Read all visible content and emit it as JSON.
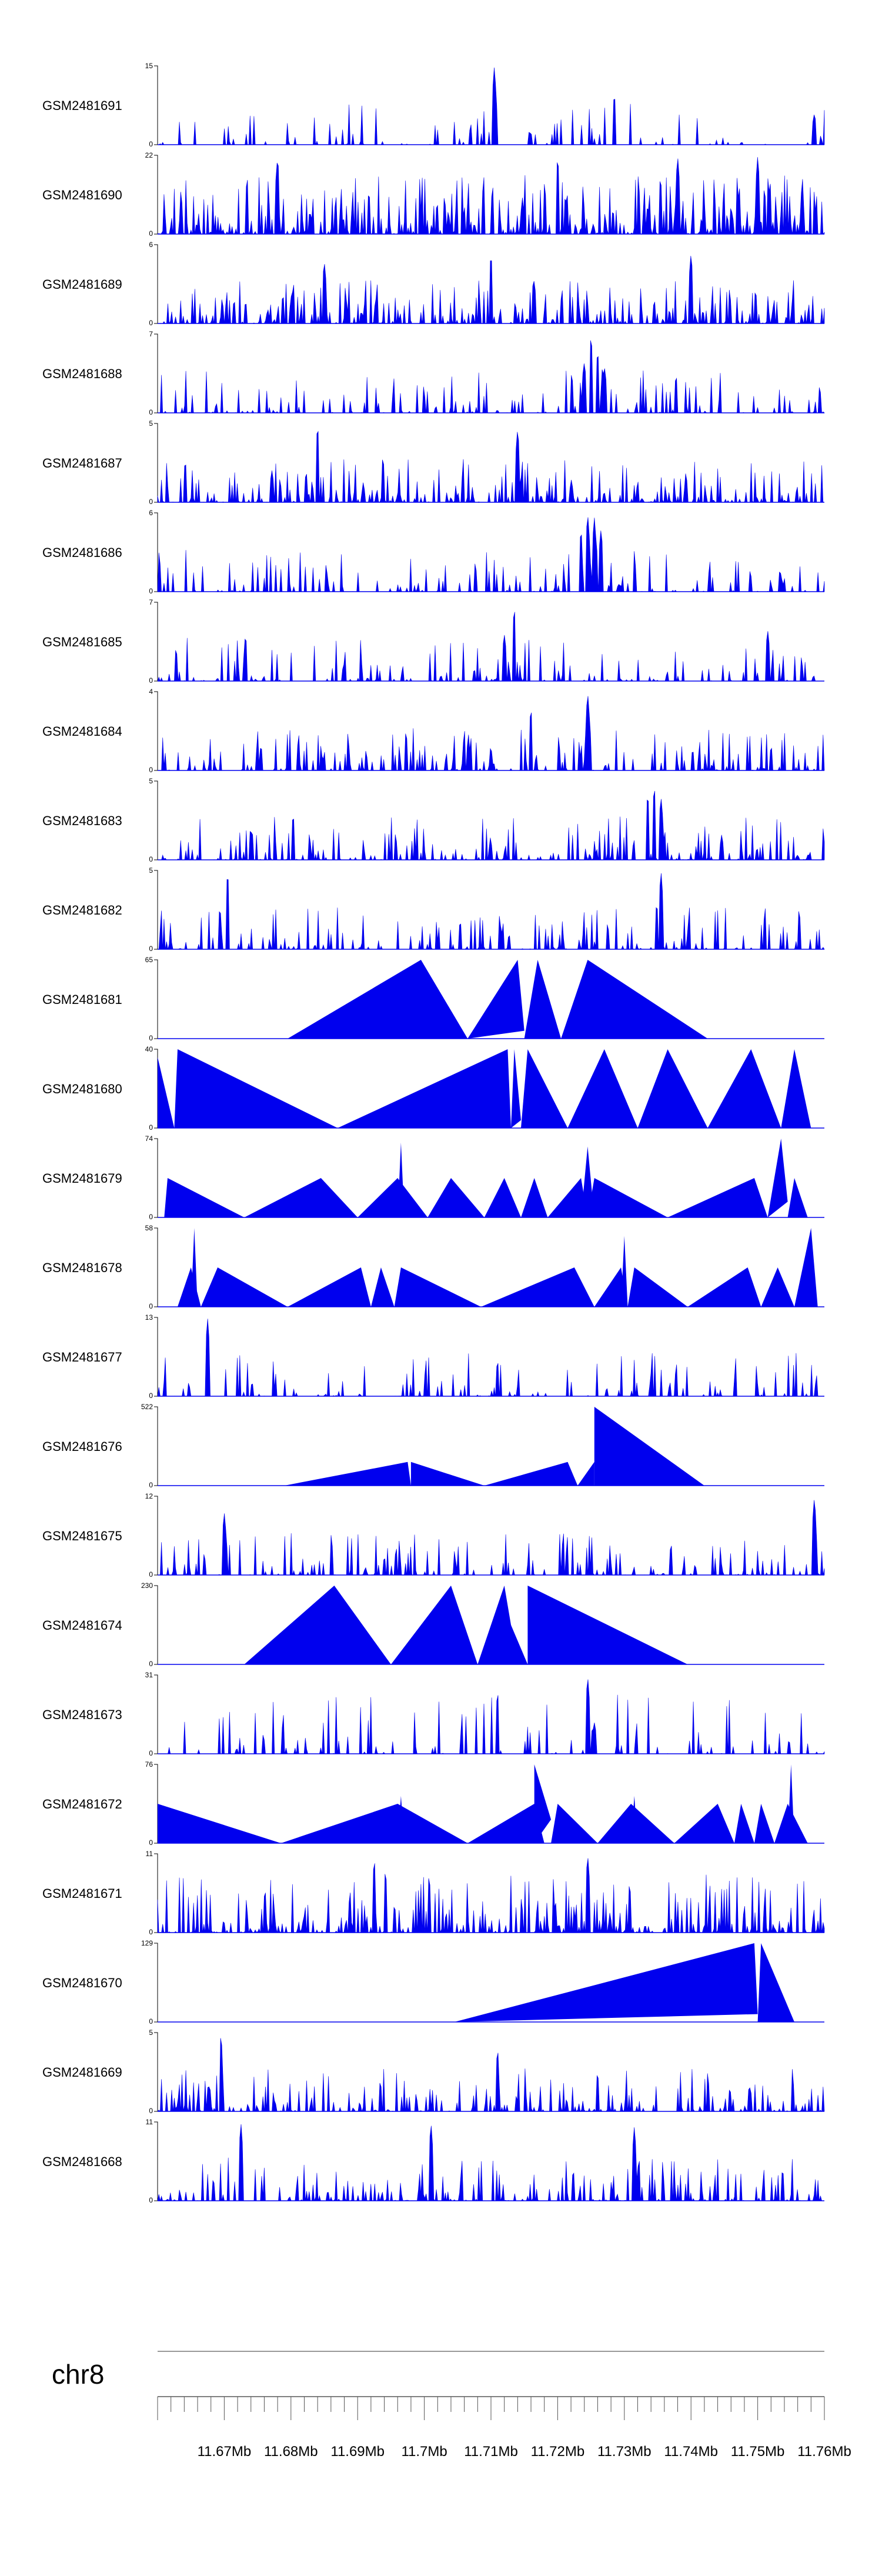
{
  "chart_data": {
    "type": "area",
    "title": "",
    "chromosome": "chr8",
    "x_range_mb": [
      11.66,
      11.76
    ],
    "x_ticks": [
      11.67,
      11.68,
      11.69,
      11.7,
      11.71,
      11.72,
      11.73,
      11.74,
      11.75,
      11.76
    ],
    "x_tick_labels": [
      "11.67Mb",
      "11.68Mb",
      "11.69Mb",
      "11.7Mb",
      "11.71Mb",
      "11.72Mb",
      "11.73Mb",
      "11.74Mb",
      "11.75Mb",
      "11.76Mb"
    ],
    "color": "#0000ee",
    "tracks": [
      {
        "name": "GSM2481691",
        "ymin": 0,
        "ymax": 15,
        "style": "spiky",
        "seed": 11,
        "density": 0.2,
        "peaks": [
          [
            0.505,
            1.0
          ],
          [
            0.685,
            0.65
          ],
          [
            0.985,
            0.4
          ]
        ]
      },
      {
        "name": "GSM2481690",
        "ymin": 0,
        "ymax": 22,
        "style": "sparse",
        "seed": 12,
        "density": 0.75,
        "peaks": [
          [
            0.18,
            1.0
          ],
          [
            0.6,
            1.0
          ],
          [
            0.9,
            1.0
          ],
          [
            0.78,
            1.0
          ]
        ]
      },
      {
        "name": "GSM2481689",
        "ymin": 0,
        "ymax": 6,
        "style": "spiky",
        "seed": 13,
        "density": 0.55,
        "peaks": [
          [
            0.5,
            0.9
          ],
          [
            0.8,
            0.9
          ],
          [
            0.25,
            0.8
          ]
        ]
      },
      {
        "name": "GSM2481688",
        "ymin": 0,
        "ymax": 7,
        "style": "spiky",
        "seed": 14,
        "density": 0.3,
        "peaks": [
          [
            0.65,
            1.0
          ],
          [
            0.66,
            0.8
          ],
          [
            0.64,
            0.65
          ],
          [
            0.67,
            0.6
          ]
        ]
      },
      {
        "name": "GSM2481687",
        "ymin": 0,
        "ymax": 5,
        "style": "spiky",
        "seed": 15,
        "density": 0.55,
        "peaks": [
          [
            0.24,
            1.0
          ],
          [
            0.54,
            0.95
          ]
        ]
      },
      {
        "name": "GSM2481686",
        "ymin": 0,
        "ymax": 6,
        "style": "spiky",
        "seed": 16,
        "density": 0.3,
        "peaks": [
          [
            0.645,
            1.0
          ],
          [
            0.655,
            0.95
          ],
          [
            0.635,
            0.8
          ],
          [
            0.665,
            0.8
          ]
        ]
      },
      {
        "name": "GSM2481685",
        "ymin": 0,
        "ymax": 7,
        "style": "spiky",
        "seed": 17,
        "density": 0.3,
        "peaks": [
          [
            0.535,
            0.95
          ],
          [
            0.915,
            0.65
          ],
          [
            0.52,
            0.6
          ]
        ]
      },
      {
        "name": "GSM2481684",
        "ymin": 0,
        "ymax": 4,
        "style": "spiky",
        "seed": 18,
        "density": 0.4,
        "peaks": [
          [
            0.645,
            1.0
          ],
          [
            0.56,
            0.8
          ]
        ]
      },
      {
        "name": "GSM2481683",
        "ymin": 0,
        "ymax": 5,
        "style": "spiky",
        "seed": 19,
        "density": 0.4,
        "peaks": [
          [
            0.745,
            0.95
          ],
          [
            0.735,
            0.85
          ],
          [
            0.755,
            0.8
          ]
        ]
      },
      {
        "name": "GSM2481682",
        "ymin": 0,
        "ymax": 5,
        "style": "spiky",
        "seed": 20,
        "density": 0.35,
        "peaks": [
          [
            0.105,
            1.0
          ],
          [
            0.755,
            1.0
          ]
        ]
      },
      {
        "name": "GSM2481681",
        "ymin": 0,
        "ymax": 65,
        "style": "tri",
        "tri": [
          [
            0.195,
            0,
            0.395,
            1.0,
            0.465,
            0
          ],
          [
            0.465,
            0,
            0.54,
            1.0,
            0.55,
            0.1
          ],
          [
            0.55,
            0,
            0.57,
            1.0,
            0.605,
            0
          ],
          [
            0.605,
            0,
            0.645,
            1.0,
            0.825,
            0
          ]
        ]
      },
      {
        "name": "GSM2481680",
        "ymin": 0,
        "ymax": 40,
        "style": "tri",
        "tri": [
          [
            0.0,
            0,
            0.0,
            0.9,
            0.025,
            0
          ],
          [
            0.025,
            0,
            0.03,
            1.0,
            0.27,
            0
          ],
          [
            0.27,
            0,
            0.525,
            1.0,
            0.53,
            0
          ],
          [
            0.53,
            0,
            0.535,
            1.0,
            0.545,
            0.1
          ],
          [
            0.545,
            0,
            0.555,
            1.0,
            0.615,
            0
          ],
          [
            0.615,
            0,
            0.67,
            1.0,
            0.72,
            0
          ],
          [
            0.72,
            0,
            0.765,
            1.0,
            0.825,
            0
          ],
          [
            0.825,
            0,
            0.89,
            1.0,
            0.935,
            0
          ],
          [
            0.935,
            0,
            0.955,
            1.0,
            0.98,
            0
          ]
        ]
      },
      {
        "name": "GSM2481679",
        "ymin": 0,
        "ymax": 74,
        "style": "tri",
        "tri": [
          [
            0.01,
            0,
            0.015,
            0.5,
            0.13,
            0
          ],
          [
            0.13,
            0,
            0.245,
            0.5,
            0.3,
            0
          ],
          [
            0.3,
            0,
            0.36,
            0.5,
            0.405,
            0
          ],
          [
            0.36,
            0,
            0.365,
            0.95,
            0.37,
            0
          ],
          [
            0.405,
            0,
            0.44,
            0.5,
            0.49,
            0
          ],
          [
            0.49,
            0,
            0.52,
            0.5,
            0.545,
            0
          ],
          [
            0.545,
            0,
            0.565,
            0.5,
            0.585,
            0
          ],
          [
            0.585,
            0,
            0.635,
            0.5,
            0.645,
            0
          ],
          [
            0.635,
            0,
            0.645,
            0.9,
            0.655,
            0
          ],
          [
            0.645,
            0,
            0.655,
            0.5,
            0.765,
            0
          ],
          [
            0.765,
            0,
            0.895,
            0.5,
            0.915,
            0
          ],
          [
            0.915,
            0,
            0.935,
            1.0,
            0.945,
            0.2
          ],
          [
            0.945,
            0,
            0.955,
            0.5,
            0.975,
            0
          ]
        ]
      },
      {
        "name": "GSM2481678",
        "ymin": 0,
        "ymax": 58,
        "style": "tri",
        "tri": [
          [
            0.03,
            0,
            0.05,
            0.5,
            0.065,
            0
          ],
          [
            0.05,
            0,
            0.055,
            1.0,
            0.06,
            0
          ],
          [
            0.065,
            0,
            0.09,
            0.5,
            0.195,
            0
          ],
          [
            0.195,
            0,
            0.305,
            0.5,
            0.32,
            0
          ],
          [
            0.32,
            0,
            0.335,
            0.5,
            0.355,
            0
          ],
          [
            0.355,
            0,
            0.365,
            0.5,
            0.485,
            0
          ],
          [
            0.485,
            0,
            0.625,
            0.5,
            0.655,
            0
          ],
          [
            0.655,
            0,
            0.695,
            0.5,
            0.705,
            0
          ],
          [
            0.695,
            0,
            0.7,
            0.9,
            0.705,
            0
          ],
          [
            0.705,
            0,
            0.715,
            0.5,
            0.795,
            0
          ],
          [
            0.795,
            0,
            0.885,
            0.5,
            0.905,
            0
          ],
          [
            0.905,
            0,
            0.93,
            0.5,
            0.955,
            0
          ],
          [
            0.955,
            0,
            0.98,
            1.0,
            0.99,
            0
          ]
        ]
      },
      {
        "name": "GSM2481677",
        "ymin": 0,
        "ymax": 13,
        "style": "spiky",
        "seed": 27,
        "density": 0.25,
        "peaks": [
          [
            0.075,
            1.0
          ],
          [
            0.51,
            0.45
          ]
        ]
      },
      {
        "name": "GSM2481676",
        "ymin": 0,
        "ymax": 522,
        "style": "tri",
        "tri": [
          [
            0.19,
            0,
            0.375,
            0.3,
            0.38,
            0
          ],
          [
            0.38,
            0,
            0.38,
            0.3,
            0.49,
            0
          ],
          [
            0.49,
            0,
            0.615,
            0.3,
            0.63,
            0
          ],
          [
            0.63,
            0,
            0.655,
            0.3,
            0.655,
            0
          ],
          [
            0.655,
            0,
            0.655,
            1.0,
            0.82,
            0
          ]
        ]
      },
      {
        "name": "GSM2481675",
        "ymin": 0,
        "ymax": 12,
        "style": "spiky",
        "seed": 29,
        "density": 0.35,
        "peaks": [
          [
            0.1,
            0.8
          ],
          [
            0.985,
            1.0
          ]
        ]
      },
      {
        "name": "GSM2481674",
        "ymin": 0,
        "ymax": 230,
        "style": "tri",
        "tri": [
          [
            0.13,
            0,
            0.265,
            1.0,
            0.35,
            0
          ],
          [
            0.35,
            0,
            0.44,
            1.0,
            0.48,
            0
          ],
          [
            0.48,
            0,
            0.52,
            1.0,
            0.54,
            0
          ],
          [
            0.52,
            0,
            0.53,
            0.5,
            0.555,
            0
          ],
          [
            0.555,
            0,
            0.555,
            1.0,
            0.795,
            0
          ]
        ]
      },
      {
        "name": "GSM2481673",
        "ymin": 0,
        "ymax": 31,
        "style": "sparse",
        "seed": 31,
        "density": 0.2,
        "peaks": [
          [
            0.51,
            0.8
          ],
          [
            0.645,
            1.0
          ],
          [
            0.655,
            0.4
          ]
        ]
      },
      {
        "name": "GSM2481672",
        "ymin": 0,
        "ymax": 76,
        "style": "tri",
        "tri": [
          [
            0.0,
            0,
            0.0,
            0.5,
            0.185,
            0
          ],
          [
            0.185,
            0,
            0.36,
            0.5,
            0.465,
            0
          ],
          [
            0.36,
            0,
            0.365,
            0.6,
            0.37,
            0
          ],
          [
            0.465,
            0,
            0.565,
            0.5,
            0.58,
            0
          ],
          [
            0.565,
            0,
            0.565,
            1.0,
            0.59,
            0.3
          ],
          [
            0.59,
            0,
            0.6,
            0.5,
            0.66,
            0
          ],
          [
            0.66,
            0,
            0.71,
            0.5,
            0.775,
            0
          ],
          [
            0.71,
            0,
            0.715,
            0.6,
            0.72,
            0
          ],
          [
            0.775,
            0,
            0.84,
            0.5,
            0.865,
            0
          ],
          [
            0.865,
            0,
            0.875,
            0.5,
            0.895,
            0
          ],
          [
            0.895,
            0,
            0.905,
            0.5,
            0.925,
            0
          ],
          [
            0.925,
            0,
            0.945,
            0.5,
            0.975,
            0
          ],
          [
            0.945,
            0,
            0.95,
            1.0,
            0.955,
            0
          ]
        ]
      },
      {
        "name": "GSM2481671",
        "ymin": 0,
        "ymax": 11,
        "style": "sparse",
        "seed": 33,
        "density": 0.6,
        "peaks": [
          [
            0.325,
            0.95
          ],
          [
            0.645,
            1.0
          ]
        ]
      },
      {
        "name": "GSM2481670",
        "ymin": 0,
        "ymax": 129,
        "style": "tri",
        "tri": [
          [
            0.445,
            0,
            0.895,
            1.0,
            0.9,
            0.1
          ],
          [
            0.9,
            0,
            0.905,
            1.0,
            0.955,
            0
          ]
        ]
      },
      {
        "name": "GSM2481669",
        "ymin": 0,
        "ymax": 5,
        "style": "spiky",
        "seed": 35,
        "density": 0.45,
        "peaks": [
          [
            0.095,
            1.0
          ],
          [
            0.51,
            0.8
          ]
        ]
      },
      {
        "name": "GSM2481668",
        "ymin": 0,
        "ymax": 11,
        "style": "spiky",
        "seed": 36,
        "density": 0.4,
        "peaks": [
          [
            0.125,
            1.0
          ],
          [
            0.41,
            1.0
          ],
          [
            0.715,
            0.95
          ]
        ]
      }
    ]
  }
}
